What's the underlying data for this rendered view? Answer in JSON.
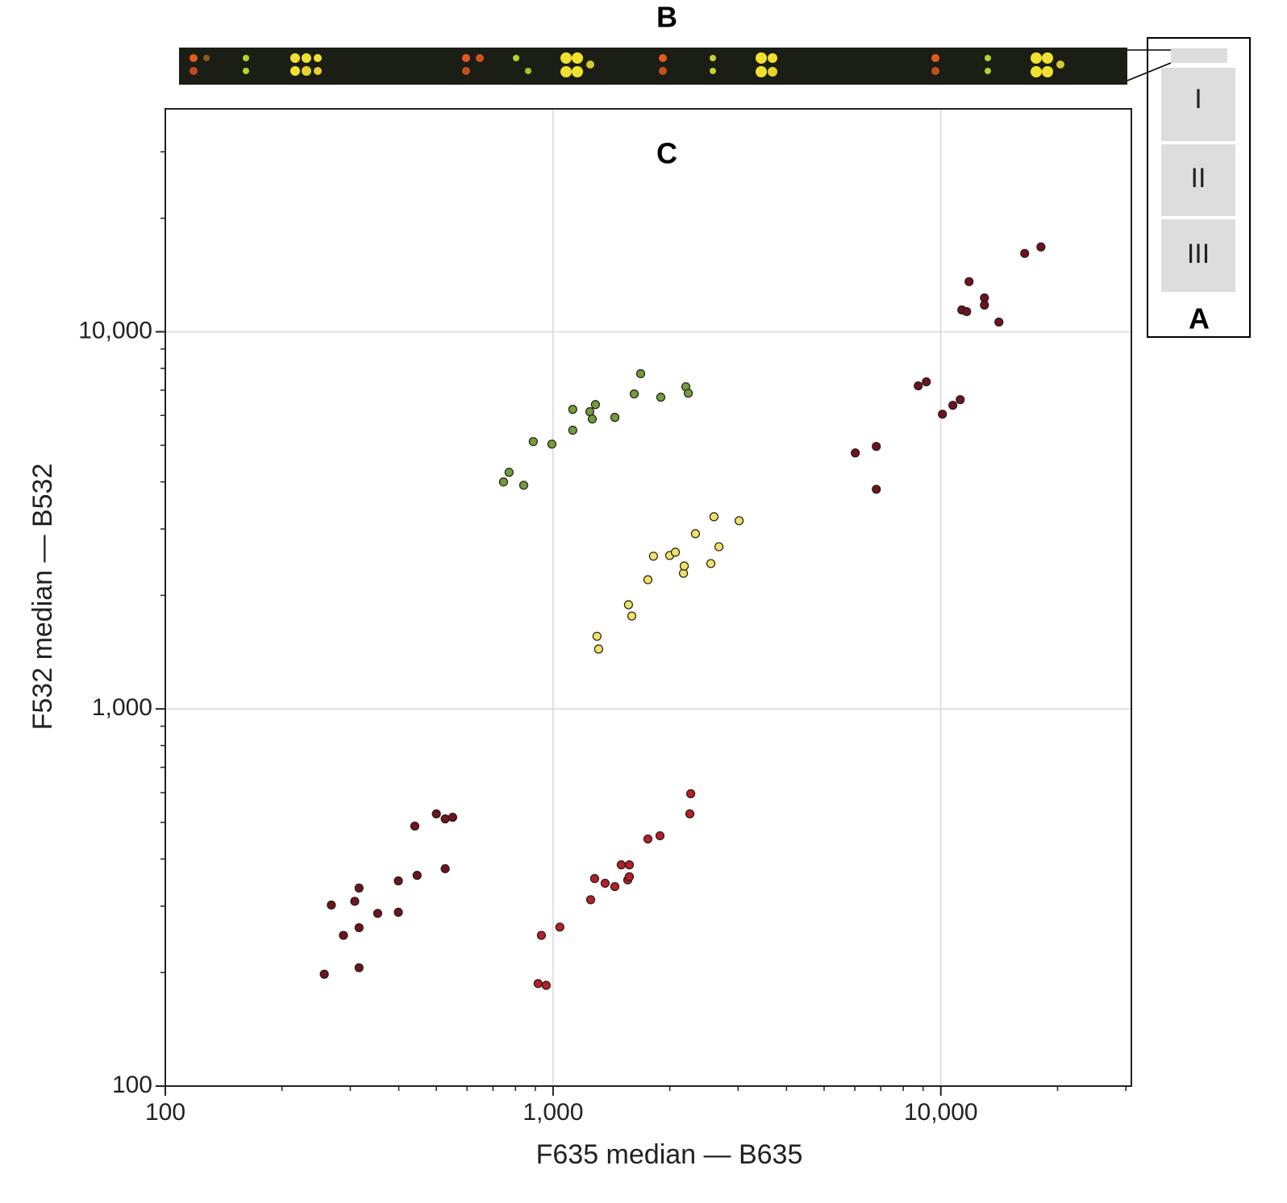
{
  "figure": {
    "strip_label": "B",
    "inset_label": "A",
    "inset_rows": [
      "I",
      "II",
      "III"
    ]
  },
  "chart_data": {
    "type": "scatter",
    "annotation": "C",
    "x_label": "F635 median — B635",
    "y_label": "F532 median — B532",
    "xscale": "log",
    "yscale": "log",
    "grid": true,
    "xlim": [
      100,
      31000
    ],
    "ylim": [
      100,
      39000
    ],
    "xticks": [
      100,
      {
        "value": 1000,
        "label": "1,000"
      },
      {
        "value": 10000,
        "label": "10,000"
      }
    ],
    "yticks": [
      100,
      {
        "value": 1000,
        "label": "1,000"
      },
      {
        "value": 10000,
        "label": "10,000"
      }
    ],
    "xminorticks": [
      200,
      300,
      400,
      500,
      600,
      700,
      800,
      900,
      2000,
      3000,
      4000,
      5000,
      6000,
      7000,
      8000,
      9000,
      20000,
      30000
    ],
    "yminorticks": [
      200,
      300,
      400,
      500,
      600,
      700,
      800,
      900,
      2000,
      3000,
      4000,
      5000,
      6000,
      7000,
      8000,
      9000,
      20000,
      30000
    ],
    "series": [
      {
        "color": "#6b1424",
        "x": [
          257,
          268,
          288,
          308,
          316,
          316,
          316,
          353,
          399,
          399,
          440,
          446,
          500,
          527,
          527,
          551
        ],
        "values": [
          198,
          302,
          251,
          309,
          335,
          263,
          206,
          287,
          350,
          289,
          489,
          362,
          527,
          511,
          377,
          516
        ]
      },
      {
        "color": "#b3202c",
        "x": [
          915,
          933,
          960,
          1041,
          1250,
          1280,
          1362,
          1443,
          1499,
          1573,
          1558,
          1573,
          1756,
          1887,
          2253,
          2265
        ],
        "values": [
          187,
          251,
          185,
          264,
          312,
          355,
          345,
          338,
          386,
          386,
          352,
          359,
          452,
          461,
          527,
          596
        ]
      },
      {
        "color": "#ece36a",
        "x": [
          1298,
          1311,
          1565,
          1596,
          1756,
          1815,
          1999,
          2067,
          2169,
          2179,
          2329,
          2552,
          2600,
          2678,
          3018
        ],
        "values": [
          1558,
          1441,
          1889,
          1763,
          2201,
          2541,
          2552,
          2603,
          2289,
          2393,
          2915,
          2429,
          3233,
          2692,
          3155
        ]
      },
      {
        "color": "#6e9e3e",
        "x": [
          745,
          770,
          840,
          889,
          993,
          1124,
          1124,
          1244,
          1262,
          1286,
          1443,
          1619,
          1682,
          1896,
          2200,
          2232
        ],
        "values": [
          3998,
          4240,
          3918,
          5114,
          5036,
          6225,
          5482,
          6138,
          5871,
          6412,
          5930,
          6841,
          7742,
          6706,
          7147,
          6872
        ]
      },
      {
        "color": "#6b1424",
        "x": [
          6017,
          6817,
          6817,
          8745,
          9174,
          10094,
          10741,
          11220,
          11324,
          11657,
          11826,
          12957,
          12957,
          14117,
          16455,
          18120
        ],
        "values": [
          4772,
          4966,
          3823,
          7187,
          7367,
          6047,
          6383,
          6607,
          11426,
          11313,
          13580,
          12300,
          11769,
          10610,
          16135,
          16784
        ]
      }
    ]
  }
}
